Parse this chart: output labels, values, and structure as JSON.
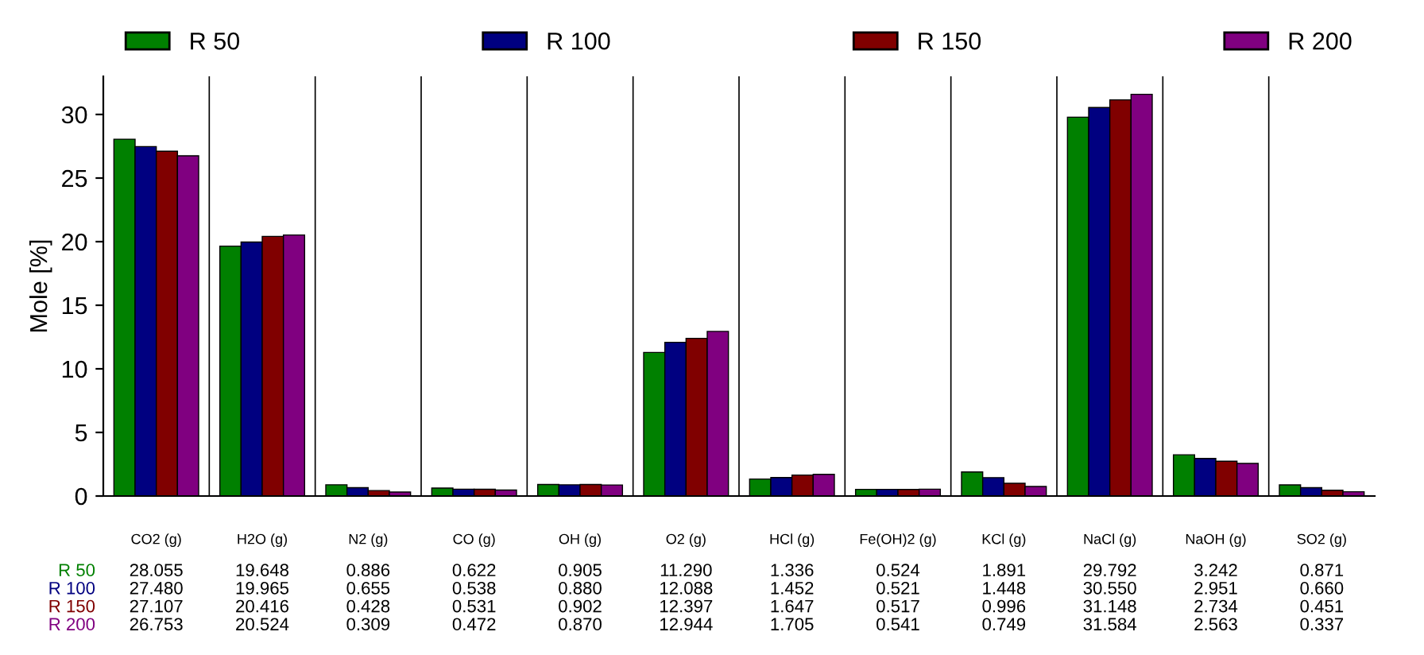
{
  "chart_data": {
    "type": "bar",
    "ylabel": "Mole [%]",
    "categories": [
      "CO2 (g)",
      "H2O (g)",
      "N2 (g)",
      "CO (g)",
      "OH (g)",
      "O2 (g)",
      "HCl (g)",
      "Fe(OH)2 (g)",
      "KCl (g)",
      "NaCl (g)",
      "NaOH (g)",
      "SO2 (g)"
    ],
    "series": [
      {
        "name": "R 50",
        "color": "#008000",
        "values": [
          28.055,
          19.648,
          0.886,
          0.622,
          0.905,
          11.29,
          1.336,
          0.524,
          1.891,
          29.792,
          3.242,
          0.871
        ],
        "value_labels": [
          "28.055",
          "19.648",
          "0.886",
          "0.622",
          "0.905",
          "11.290",
          "1.336",
          "0.524",
          "1.891",
          "29.792",
          "3.242",
          "0.871"
        ]
      },
      {
        "name": "R 100",
        "color": "#000080",
        "values": [
          27.48,
          19.965,
          0.655,
          0.538,
          0.88,
          12.088,
          1.452,
          0.521,
          1.448,
          30.55,
          2.951,
          0.66
        ],
        "value_labels": [
          "27.480",
          "19.965",
          "0.655",
          "0.538",
          "0.880",
          "12.088",
          "1.452",
          "0.521",
          "1.448",
          "30.550",
          "2.951",
          "0.660"
        ]
      },
      {
        "name": "R 150",
        "color": "#800000",
        "values": [
          27.107,
          20.416,
          0.428,
          0.531,
          0.902,
          12.397,
          1.647,
          0.517,
          0.996,
          31.148,
          2.734,
          0.451
        ],
        "value_labels": [
          "27.107",
          "20.416",
          "0.428",
          "0.531",
          "0.902",
          "12.397",
          "1.647",
          "0.517",
          "0.996",
          "31.148",
          "2.734",
          "0.451"
        ]
      },
      {
        "name": "R 200",
        "color": "#800080",
        "values": [
          26.753,
          20.524,
          0.309,
          0.472,
          0.87,
          12.944,
          1.705,
          0.541,
          0.749,
          31.584,
          2.563,
          0.337
        ],
        "value_labels": [
          "26.753",
          "20.524",
          "0.309",
          "0.472",
          "0.870",
          "12.944",
          "1.705",
          "0.541",
          "0.749",
          "31.584",
          "2.563",
          "0.337"
        ]
      }
    ],
    "ylim": [
      0,
      33
    ],
    "yticks": [
      0,
      5,
      10,
      15,
      20,
      25,
      30
    ],
    "grid": "x",
    "legend": "top"
  }
}
